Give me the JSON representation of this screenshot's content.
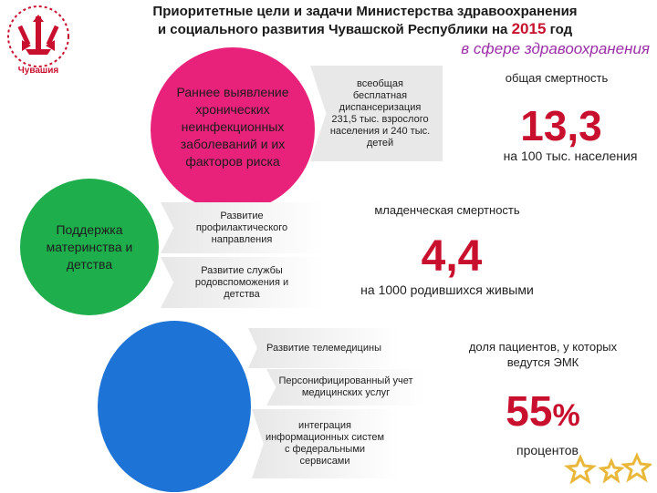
{
  "header": {
    "title_line1": "Приоритетные цели и задачи Министерства здравоохранения",
    "title_line2": "и социального развития Чувашской Республики на",
    "title_year": "2015",
    "title_suffix": "год",
    "subtitle": "в сфере здравоохранения"
  },
  "logo": {
    "text": "Чувашия",
    "icon": "chuvash-emblem-icon"
  },
  "circles": {
    "pink": {
      "label": "Раннее выявление хронических неинфекционных заболеваний и их факторов риска"
    },
    "green": {
      "label": "Поддержка материнства и детства"
    },
    "blue": {
      "label": ""
    }
  },
  "callouts": {
    "dispanserization": "всеобщая бесплатная диспансеризация 231,5 тыс. взрослого населения и 240 тыс. детей",
    "prophylactic": "Развитие профилактического направления",
    "maternity_service": "Развитие службы родовспоможения и детства",
    "telemedicine": "Развитие телемедицины",
    "personalized": "Персонифицированный учет медицинских услуг",
    "integration": "интеграция информационных систем с федеральными сервисами"
  },
  "stats": {
    "mortality": {
      "label": "общая смертность",
      "value": "13,3",
      "unit": "на 100 тыс. населения"
    },
    "infant": {
      "label": "младенческая смертность",
      "value": "4,4",
      "unit": "на 1000 родившихся живыми"
    },
    "emk": {
      "label": "доля пациентов, у которых ведутся ЭМК",
      "value": "55",
      "percent_sign": "%",
      "unit": "процентов"
    }
  },
  "colors": {
    "pink": "#e8217a",
    "green": "#1fae4c",
    "blue": "#1e73d6",
    "accent_red": "#c8102e",
    "subtitle_purple": "#9b2fa8",
    "star_gold": "#e9b73a"
  }
}
